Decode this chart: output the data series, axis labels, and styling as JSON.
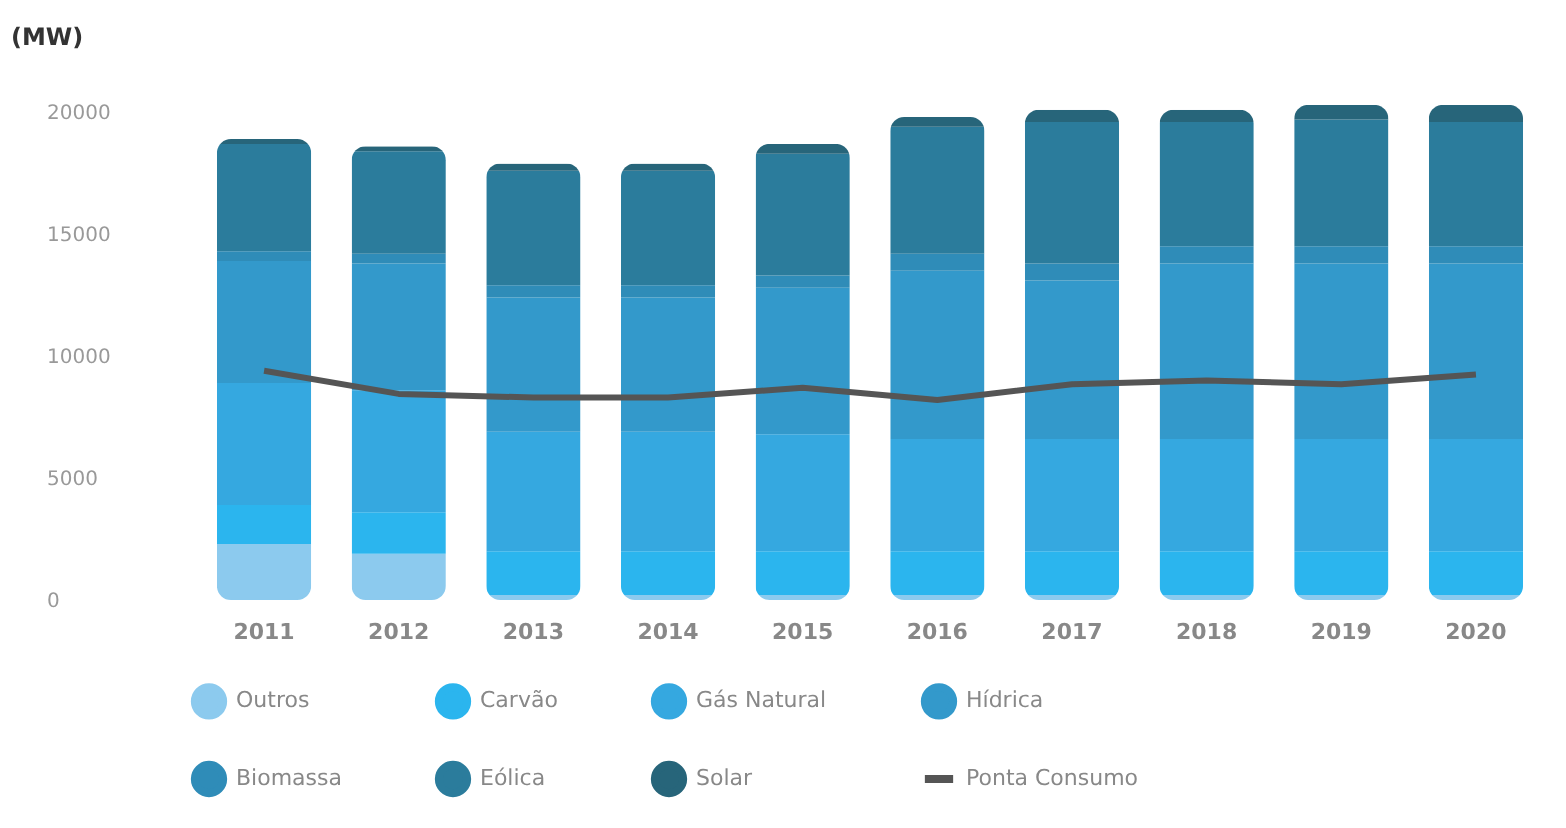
{
  "chart_data": {
    "type": "bar",
    "stacked": true,
    "ylabel": "(MW)",
    "categories": [
      "2011",
      "2012",
      "2013",
      "2014",
      "2015",
      "2016",
      "2017",
      "2018",
      "2019",
      "2020"
    ],
    "ylim": [
      0,
      20500
    ],
    "yticks": [
      0,
      5000,
      10000,
      15000,
      20000
    ],
    "legend": "bottom",
    "series": [
      {
        "name": "Outros",
        "color": "#8ccaee",
        "values": [
          2300,
          1900,
          200,
          200,
          200,
          200,
          200,
          200,
          200,
          200
        ]
      },
      {
        "name": "Carvão",
        "color": "#2bb5ee",
        "values": [
          1600,
          1700,
          1800,
          1800,
          1800,
          1800,
          1800,
          1800,
          1800,
          1800
        ]
      },
      {
        "name": "Gás Natural",
        "color": "#35a8e0",
        "values": [
          5000,
          5000,
          4900,
          4900,
          4800,
          4600,
          4600,
          4600,
          4600,
          4600
        ]
      },
      {
        "name": "Hídrica",
        "color": "#3399cb",
        "values": [
          5000,
          5200,
          5500,
          5500,
          6000,
          6900,
          6500,
          7200,
          7200,
          7200
        ]
      },
      {
        "name": "Biomassa",
        "color": "#2f8cb8",
        "values": [
          400,
          400,
          500,
          500,
          500,
          700,
          700,
          700,
          700,
          700
        ]
      },
      {
        "name": "Eólica",
        "color": "#2b7c9c",
        "values": [
          4400,
          4200,
          4700,
          4700,
          5000,
          5200,
          5800,
          5100,
          5200,
          5100
        ]
      },
      {
        "name": "Solar",
        "color": "#27657a",
        "values": [
          200,
          200,
          300,
          300,
          400,
          400,
          500,
          500,
          600,
          700
        ]
      },
      {
        "name": "Ponta Consumo",
        "type": "line",
        "color": "#555555",
        "values": [
          9400,
          8450,
          8300,
          8300,
          8700,
          8200,
          8850,
          9000,
          8850,
          9250
        ]
      }
    ]
  }
}
